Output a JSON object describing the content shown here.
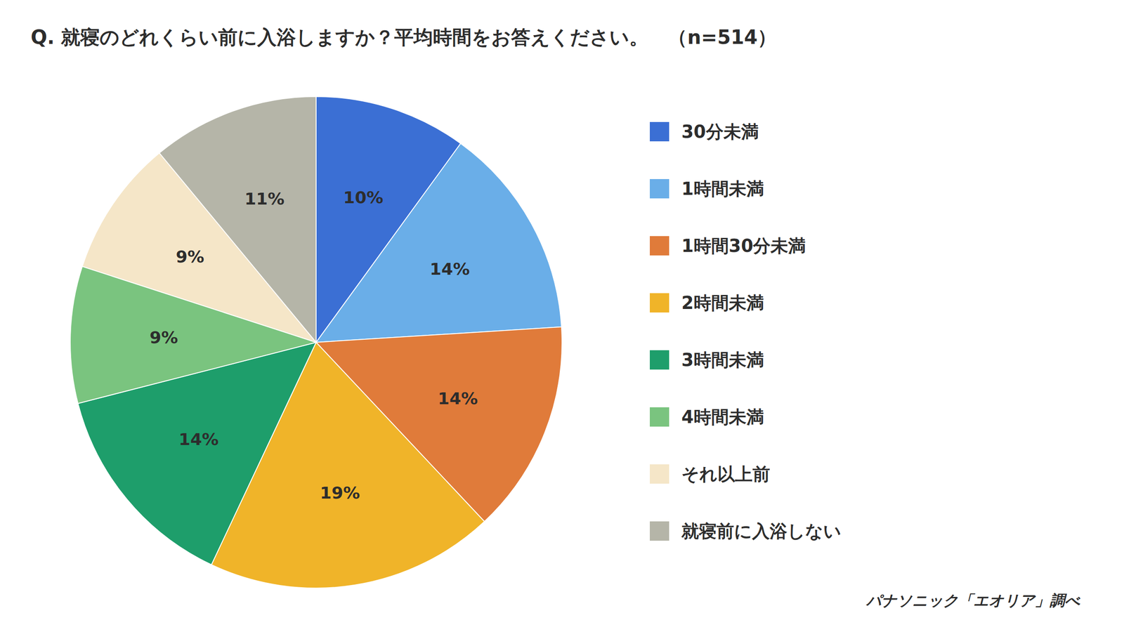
{
  "chart_data": {
    "type": "pie",
    "title": "Q. 就寝のどれくらい前に入浴しますか？平均時間をお答えください。　（n=514）",
    "categories": [
      "30分未満",
      "1時間未満",
      "1時間30分未満",
      "2時間未満",
      "3時間未満",
      "4時間未満",
      "それ以上前",
      "就寝前に入浴しない"
    ],
    "values": [
      10,
      14,
      14,
      19,
      14,
      9,
      9,
      11
    ],
    "value_labels": [
      "10%",
      "14%",
      "14%",
      "19%",
      "14%",
      "9%",
      "9%",
      "11%"
    ],
    "colors": [
      "#3b6fd4",
      "#6aaee8",
      "#e07b3a",
      "#f0b429",
      "#1e9e6b",
      "#7ac47f",
      "#f5e6c8",
      "#b5b5a8"
    ],
    "data_labels": true,
    "legend": "right",
    "annotations": [
      "パナソニック「エオリア」調べ"
    ]
  }
}
